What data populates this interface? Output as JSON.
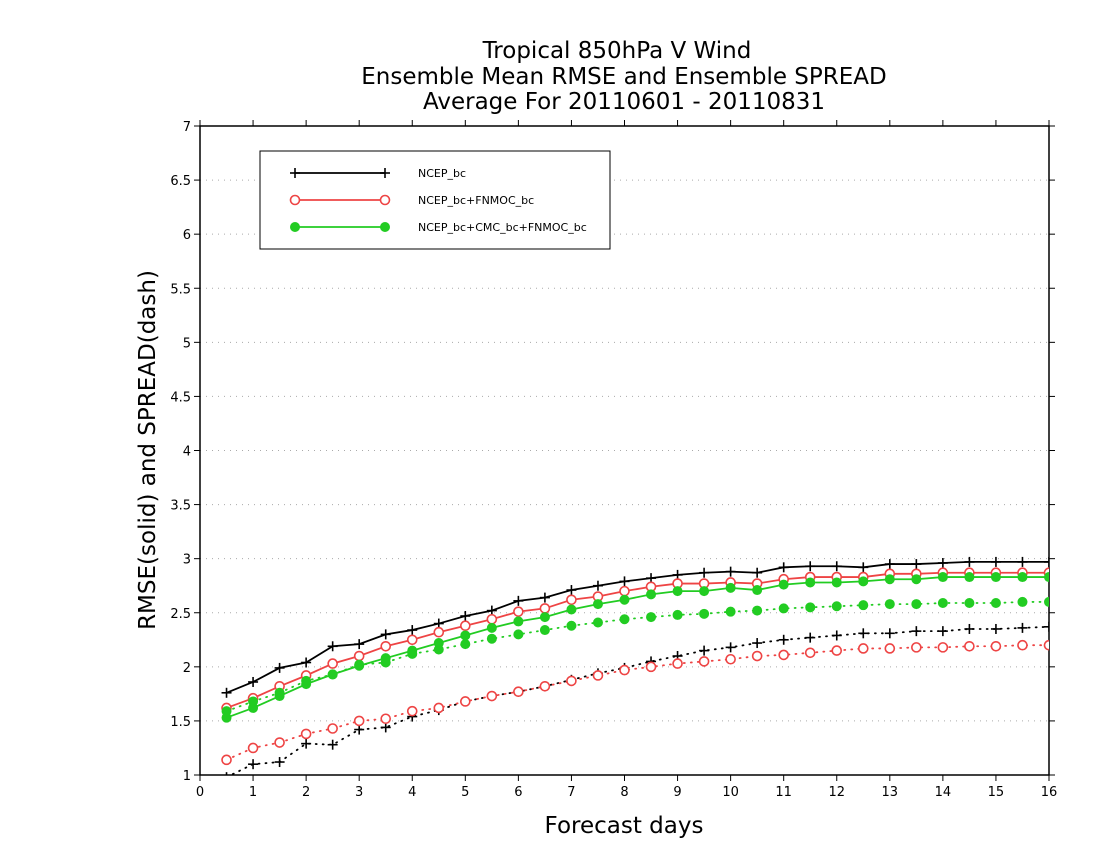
{
  "chart_data": {
    "type": "line",
    "title_lines": [
      "Tropical 850hPa V Wind",
      "Ensemble Mean RMSE and Ensemble SPREAD",
      "Average For 20110601 - 20110831"
    ],
    "xlabel": "Forecast days",
    "ylabel": "RMSE(solid) and SPREAD(dash)",
    "xlim": [
      0,
      16
    ],
    "ylim": [
      1,
      7
    ],
    "x_ticks": [
      0,
      1,
      2,
      3,
      4,
      5,
      6,
      7,
      8,
      9,
      10,
      11,
      12,
      13,
      14,
      15,
      16
    ],
    "y_ticks": [
      1,
      1.5,
      2,
      2.5,
      3,
      3.5,
      4,
      4.5,
      5,
      5.5,
      6,
      6.5,
      7
    ],
    "y_tick_labels": [
      "1",
      "1.5",
      "2",
      "2.5",
      "3",
      "3.5",
      "4",
      "4.5",
      "5",
      "5.5",
      "6",
      "6.5",
      "7"
    ],
    "grid": "horizontal dotted",
    "legend_position": "top-left",
    "x": [
      0.5,
      1,
      1.5,
      2,
      2.5,
      3,
      3.5,
      4,
      4.5,
      5,
      5.5,
      6,
      6.5,
      7,
      7.5,
      8,
      8.5,
      9,
      9.5,
      10,
      10.5,
      11,
      11.5,
      12,
      12.5,
      13,
      13.5,
      14,
      14.5,
      15,
      15.5,
      16
    ],
    "series": [
      {
        "name": "NCEP_bc",
        "color": "#000000",
        "marker": "plus",
        "rmse": [
          1.76,
          1.86,
          1.99,
          2.04,
          2.19,
          2.21,
          2.3,
          2.34,
          2.4,
          2.47,
          2.52,
          2.61,
          2.64,
          2.71,
          2.75,
          2.79,
          2.82,
          2.85,
          2.87,
          2.88,
          2.87,
          2.92,
          2.93,
          2.93,
          2.92,
          2.95,
          2.95,
          2.96,
          2.97,
          2.97,
          2.97,
          2.97
        ],
        "spread": [
          0.98,
          1.1,
          1.12,
          1.29,
          1.28,
          1.42,
          1.44,
          1.54,
          1.6,
          1.68,
          1.73,
          1.77,
          1.82,
          1.88,
          1.94,
          1.99,
          2.05,
          2.1,
          2.15,
          2.18,
          2.22,
          2.25,
          2.27,
          2.29,
          2.31,
          2.31,
          2.33,
          2.33,
          2.35,
          2.35,
          2.36,
          2.37
        ]
      },
      {
        "name": "NCEP_bc+FNMOC_bc",
        "color": "#ee4444",
        "marker": "open-circle",
        "rmse": [
          1.62,
          1.71,
          1.82,
          1.92,
          2.03,
          2.1,
          2.19,
          2.25,
          2.32,
          2.38,
          2.44,
          2.51,
          2.54,
          2.62,
          2.65,
          2.7,
          2.74,
          2.77,
          2.77,
          2.78,
          2.77,
          2.81,
          2.83,
          2.83,
          2.83,
          2.86,
          2.86,
          2.87,
          2.87,
          2.87,
          2.87,
          2.87
        ],
        "spread": [
          1.14,
          1.25,
          1.3,
          1.38,
          1.43,
          1.5,
          1.52,
          1.59,
          1.62,
          1.68,
          1.73,
          1.77,
          1.82,
          1.87,
          1.92,
          1.97,
          2.0,
          2.03,
          2.05,
          2.07,
          2.1,
          2.11,
          2.13,
          2.15,
          2.17,
          2.17,
          2.18,
          2.18,
          2.19,
          2.19,
          2.2,
          2.2
        ]
      },
      {
        "name": "NCEP_bc+CMC_bc+FNMOC_bc",
        "color": "#22cc22",
        "marker": "filled-circle",
        "rmse": [
          1.53,
          1.62,
          1.73,
          1.84,
          1.93,
          2.01,
          2.08,
          2.15,
          2.22,
          2.29,
          2.36,
          2.42,
          2.46,
          2.53,
          2.58,
          2.62,
          2.67,
          2.7,
          2.7,
          2.73,
          2.71,
          2.76,
          2.78,
          2.78,
          2.79,
          2.81,
          2.81,
          2.83,
          2.83,
          2.83,
          2.83,
          2.83
        ],
        "spread": [
          1.59,
          1.68,
          1.76,
          1.87,
          1.93,
          2.02,
          2.04,
          2.12,
          2.16,
          2.21,
          2.26,
          2.3,
          2.34,
          2.38,
          2.41,
          2.44,
          2.46,
          2.48,
          2.49,
          2.51,
          2.52,
          2.54,
          2.55,
          2.56,
          2.57,
          2.58,
          2.58,
          2.59,
          2.59,
          2.59,
          2.6,
          2.6
        ]
      }
    ]
  }
}
